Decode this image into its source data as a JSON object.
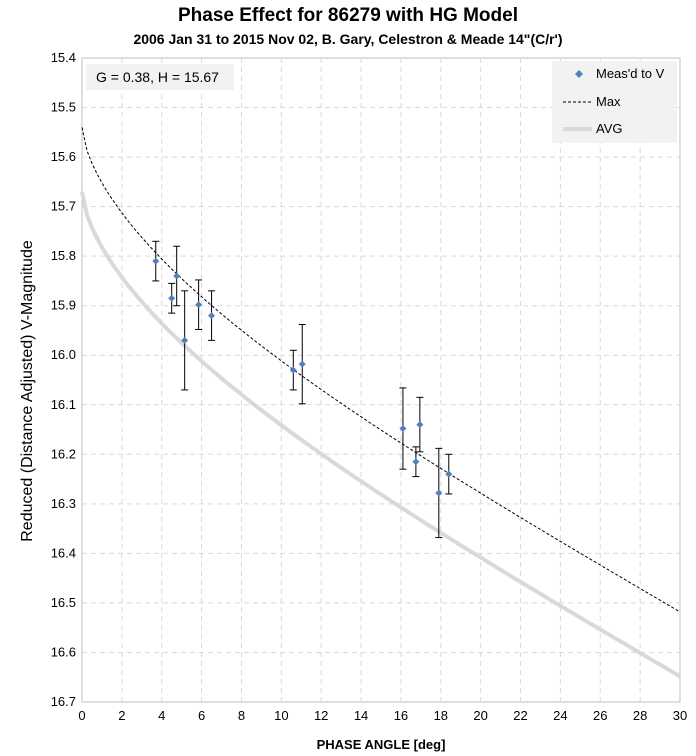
{
  "chart_data": {
    "type": "scatter",
    "title": "Phase Effect for 86279 with HG Model",
    "subtitle": "2006 Jan 31 to 2015 Nov 02, B. Gary, Celestron & Meade 14\"(C/r')",
    "xlabel": "PHASE ANGLE [deg]",
    "ylabel": "Reduced (Distance Adjusted) V-Magnitude",
    "xlim": [
      0,
      30
    ],
    "ylim": [
      15.4,
      16.7
    ],
    "y_inverted": true,
    "grid": true,
    "x_ticks": [
      "0",
      "2",
      "4",
      "6",
      "8",
      "10",
      "12",
      "14",
      "16",
      "18",
      "20",
      "22",
      "24",
      "26",
      "28",
      "30"
    ],
    "y_ticks": [
      "15.4",
      "15.5",
      "15.6",
      "15.7",
      "15.8",
      "15.9",
      "16.0",
      "16.1",
      "16.2",
      "16.3",
      "16.4",
      "16.5",
      "16.6",
      "16.7"
    ],
    "annotation": "G = 0.38, H = 15.67",
    "legend_position": "top-right",
    "legend": [
      "Meas'd to V",
      "Max",
      "AVG"
    ],
    "series": [
      {
        "name": "Meas'd to V",
        "kind": "points-with-error-bars",
        "color": "#4f81bd",
        "points": [
          {
            "x": 3.7,
            "y": 15.81,
            "err": 0.04
          },
          {
            "x": 4.5,
            "y": 15.885,
            "err": 0.03
          },
          {
            "x": 4.75,
            "y": 15.84,
            "err": 0.06
          },
          {
            "x": 5.15,
            "y": 15.97,
            "err": 0.1
          },
          {
            "x": 5.85,
            "y": 15.898,
            "err": 0.05
          },
          {
            "x": 6.5,
            "y": 15.92,
            "err": 0.05
          },
          {
            "x": 10.6,
            "y": 16.03,
            "err": 0.04
          },
          {
            "x": 11.05,
            "y": 16.018,
            "err": 0.08
          },
          {
            "x": 16.1,
            "y": 16.148,
            "err": 0.082
          },
          {
            "x": 16.75,
            "y": 16.215,
            "err": 0.03
          },
          {
            "x": 16.95,
            "y": 16.14,
            "err": 0.055
          },
          {
            "x": 17.9,
            "y": 16.278,
            "err": 0.09
          },
          {
            "x": 18.4,
            "y": 16.24,
            "err": 0.04
          }
        ]
      },
      {
        "name": "Max",
        "kind": "dashed-line",
        "color": "#000000",
        "H": 15.54,
        "G": 0.38
      },
      {
        "name": "AVG",
        "kind": "thick-line",
        "color": "#d9d9d9",
        "H": 15.67,
        "G": 0.38
      }
    ]
  }
}
